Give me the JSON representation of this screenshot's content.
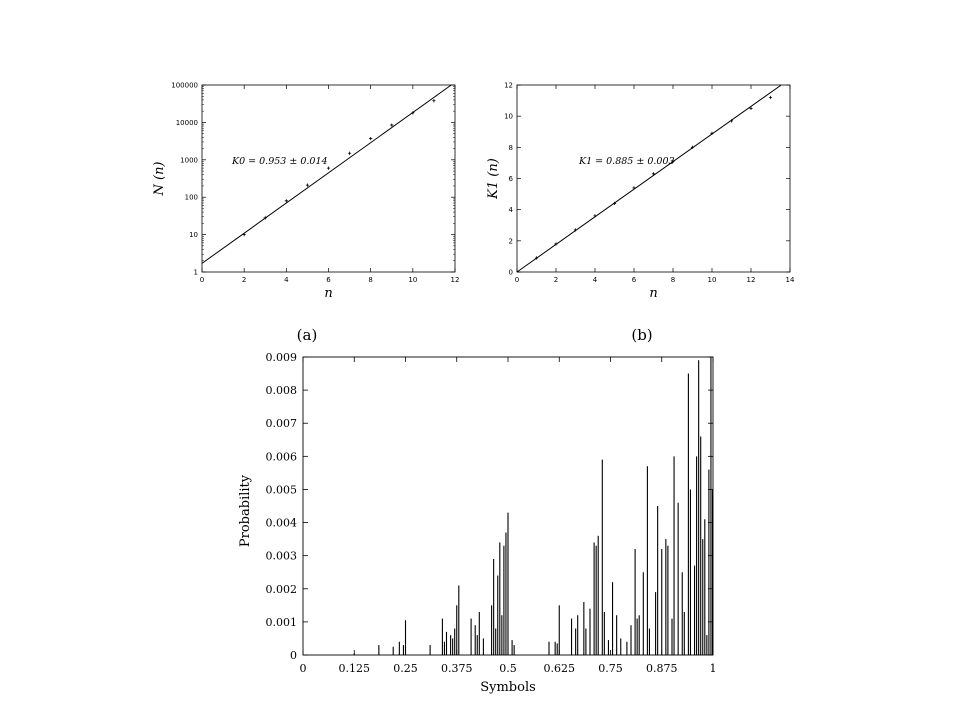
{
  "chart_data": [
    {
      "type": "scatter",
      "panel_label": "(a)",
      "xlabel": "n",
      "ylabel": "N (n)",
      "yscale": "log",
      "xlim": [
        0,
        12
      ],
      "ylim": [
        1,
        100000
      ],
      "xticks": [
        "0",
        "2",
        "4",
        "6",
        "8",
        "10",
        "12"
      ],
      "yticks": [
        "1",
        "10",
        "100",
        "1000",
        "10000",
        "100000"
      ],
      "annotation": "K0 = 0.953 ± 0.014",
      "points": {
        "x": [
          2,
          3,
          4,
          5,
          6,
          7,
          8,
          9,
          10,
          11
        ],
        "y": [
          10,
          28,
          80,
          210,
          600,
          1500,
          3700,
          8500,
          18000,
          38000
        ]
      },
      "fit_line": {
        "x": [
          0,
          12
        ],
        "y": [
          1.7,
          118000
        ]
      }
    },
    {
      "type": "scatter",
      "panel_label": "(b)",
      "xlabel": "n",
      "ylabel": "K1 (n)",
      "xlim": [
        0,
        14
      ],
      "ylim": [
        0,
        12
      ],
      "xticks": [
        "0",
        "2",
        "4",
        "6",
        "8",
        "10",
        "12",
        "14"
      ],
      "yticks": [
        "0",
        "2",
        "4",
        "6",
        "8",
        "10",
        "12"
      ],
      "annotation": "K1 = 0.885 ± 0.003",
      "points": {
        "x": [
          1,
          2,
          3,
          4,
          5,
          6,
          7,
          8,
          9,
          10,
          11,
          12,
          13
        ],
        "y": [
          0.9,
          1.8,
          2.7,
          3.6,
          4.4,
          5.4,
          6.3,
          7.1,
          8.0,
          8.9,
          9.7,
          10.5,
          11.2
        ]
      },
      "fit_line": {
        "x": [
          0,
          13.55
        ],
        "y": [
          0,
          12
        ]
      }
    },
    {
      "type": "bar",
      "xlabel": "Symbols",
      "ylabel": "Probability",
      "xlim": [
        0,
        1
      ],
      "ylim": [
        0,
        0.009
      ],
      "xticks": [
        "0",
        "0.125",
        "0.25",
        "0.375",
        "0.5",
        "0.625",
        "0.75",
        "0.875",
        "1"
      ],
      "yticks": [
        "0",
        "0.001",
        "0.002",
        "0.003",
        "0.004",
        "0.005",
        "0.006",
        "0.007",
        "0.008",
        "0.009"
      ],
      "bars": {
        "x": [
          0.125,
          0.185,
          0.22,
          0.235,
          0.245,
          0.25,
          0.31,
          0.34,
          0.345,
          0.35,
          0.36,
          0.365,
          0.37,
          0.375,
          0.38,
          0.41,
          0.42,
          0.425,
          0.43,
          0.44,
          0.46,
          0.465,
          0.47,
          0.475,
          0.48,
          0.485,
          0.49,
          0.495,
          0.5,
          0.51,
          0.515,
          0.6,
          0.615,
          0.62,
          0.625,
          0.655,
          0.665,
          0.67,
          0.685,
          0.69,
          0.7,
          0.71,
          0.715,
          0.72,
          0.73,
          0.735,
          0.745,
          0.755,
          0.765,
          0.775,
          0.79,
          0.8,
          0.81,
          0.815,
          0.82,
          0.83,
          0.84,
          0.845,
          0.86,
          0.865,
          0.875,
          0.885,
          0.89,
          0.9,
          0.905,
          0.915,
          0.925,
          0.93,
          0.94,
          0.945,
          0.955,
          0.96,
          0.965,
          0.97,
          0.975,
          0.98,
          0.985,
          0.99,
          0.995,
          1.0
        ],
        "y": [
          5e-05,
          0.0003,
          0.00025,
          0.0004,
          0.0003,
          0.00105,
          0.0003,
          0.0011,
          0.0004,
          0.0007,
          0.0006,
          0.0005,
          0.0008,
          0.0015,
          0.0021,
          0.0011,
          0.0009,
          0.0006,
          0.0013,
          0.0005,
          0.0015,
          0.0029,
          0.0008,
          0.0024,
          0.0034,
          0.0012,
          0.0033,
          0.0037,
          0.0043,
          0.00045,
          0.0003,
          0.0004,
          0.0004,
          0.00035,
          0.0015,
          0.0011,
          0.0008,
          0.0012,
          0.0016,
          0.0008,
          0.0014,
          0.0034,
          0.0033,
          0.0036,
          0.0059,
          0.0013,
          0.00045,
          0.0022,
          0.0012,
          0.0005,
          0.0004,
          0.0009,
          0.0032,
          0.0011,
          0.0012,
          0.0025,
          0.0057,
          0.0008,
          0.0019,
          0.0045,
          0.0032,
          0.0035,
          0.0033,
          0.0011,
          0.006,
          0.0046,
          0.0025,
          0.0013,
          0.0085,
          0.005,
          0.0027,
          0.006,
          0.0089,
          0.0066,
          0.0035,
          0.0041,
          0.0006,
          0.0056,
          0.0095,
          0.005
        ]
      }
    }
  ]
}
